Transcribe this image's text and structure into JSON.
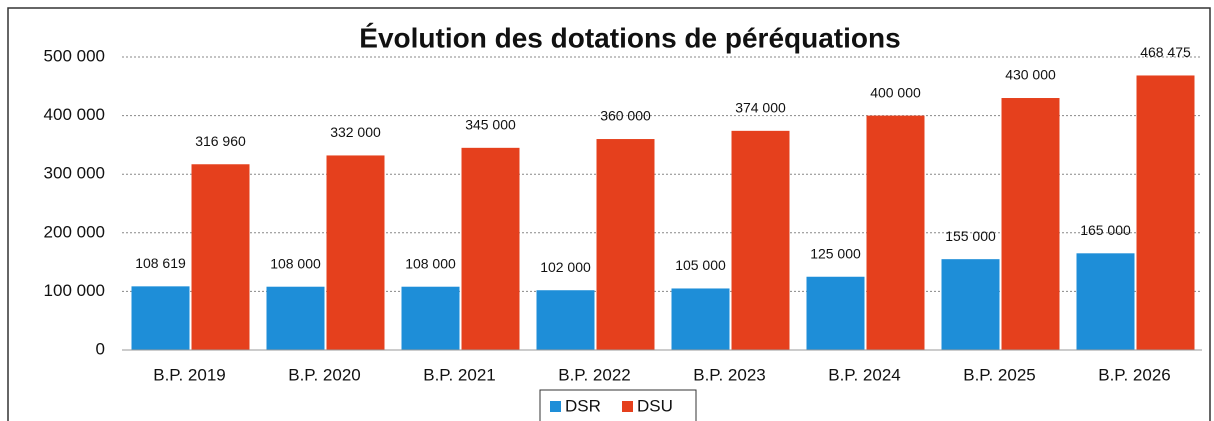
{
  "chart_data": {
    "type": "bar",
    "title": "Évolution des dotations de péréquations",
    "categories": [
      "B.P. 2019",
      "B.P. 2020",
      "B.P. 2021",
      "B.P. 2022",
      "B.P. 2023",
      "B.P. 2024",
      "B.P. 2025",
      "B.P. 2026"
    ],
    "series": [
      {
        "name": "DSR",
        "color": "#1e8ed8",
        "values": [
          108619,
          108000,
          108000,
          102000,
          105000,
          125000,
          155000,
          165000
        ],
        "value_labels": [
          "108 619",
          "108 000",
          "108 000",
          "102 000",
          "105 000",
          "125 000",
          "155 000",
          "165 000"
        ]
      },
      {
        "name": "DSU",
        "color": "#e5401d",
        "values": [
          316960,
          332000,
          345000,
          360000,
          374000,
          400000,
          430000,
          468475
        ],
        "value_labels": [
          "316 960",
          "332 000",
          "345 000",
          "360 000",
          "374 000",
          "400 000",
          "430 000",
          "468 475"
        ]
      }
    ],
    "ylim": [
      0,
      500000
    ],
    "yticks": [
      0,
      {
        "value": 100000,
        "label": "100 000"
      },
      {
        "value": 200000,
        "label": "200 000"
      },
      {
        "value": 300000,
        "label": "300 000"
      },
      {
        "value": 400000,
        "label": "400 000"
      },
      {
        "value": 500000,
        "label": "500 000"
      }
    ],
    "grid": true,
    "legend": "bottom"
  }
}
